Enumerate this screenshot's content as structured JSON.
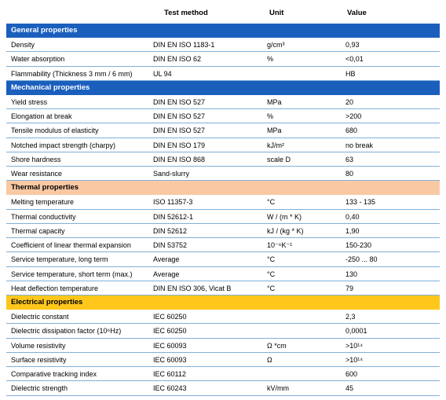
{
  "header": {
    "test_method": "Test method",
    "unit": "Unit",
    "value": "Value"
  },
  "sections": [
    {
      "id": "general",
      "title": "General properties",
      "color": "#1b5fbd",
      "rows": [
        {
          "name": "Density",
          "method": "DIN EN ISO 1183-1",
          "unit": "g/cm³",
          "value": "0,93"
        },
        {
          "name": "Water absorption",
          "method": "DIN EN ISO 62",
          "unit": "%",
          "value": "<0,01"
        },
        {
          "name": "Flammability (Thickness 3 mm / 6 mm)",
          "method": "UL 94",
          "unit": "",
          "value": "HB"
        }
      ]
    },
    {
      "id": "mech",
      "title": "Mechanical properties",
      "color": "#1b5fbd",
      "rows": [
        {
          "name": "Yield stress",
          "method": "DIN EN ISO 527",
          "unit": "MPa",
          "value": "20"
        },
        {
          "name": "Elongation at break",
          "method": "DIN EN ISO 527",
          "unit": "%",
          "value": ">200"
        },
        {
          "name": "Tensile modulus of elasticity",
          "method": "DIN EN ISO 527",
          "unit": "MPa",
          "value": "680"
        },
        {
          "name": "Notched impact strength (charpy)",
          "method": "DIN EN ISO 179",
          "unit": "kJ/m²",
          "value": "no break"
        },
        {
          "name": "Shore hardness",
          "method": "DIN EN ISO 868",
          "unit": "scale D",
          "value": "63"
        },
        {
          "name": "Wear resistance",
          "method": "Sand-slurry",
          "unit": "",
          "value": "80"
        }
      ]
    },
    {
      "id": "thermal",
      "title": "Thermal properties",
      "color": "#f9c9a4",
      "rows": [
        {
          "name": "Melting temperature",
          "method": "ISO 11357-3",
          "unit": "°C",
          "value": "133 - 135"
        },
        {
          "name": "Thermal conductivity",
          "method": "DIN 52612-1",
          "unit": "W / (m * K)",
          "value": "0,40"
        },
        {
          "name": "Thermal capacity",
          "method": "DIN 52612",
          "unit": "kJ / (kg * K)",
          "value": "1,90"
        },
        {
          "name": "Coefficient of linear thermal expansion",
          "method": "DIN 53752",
          "unit": "10⁻⁶K⁻¹",
          "value": "150-230"
        },
        {
          "name": "Service temperature, long term",
          "method": "Average",
          "unit": "°C",
          "value": "-250 ... 80"
        },
        {
          "name": "Service temperature, short term (max.)",
          "method": "Average",
          "unit": "°C",
          "value": "130"
        },
        {
          "name": "Heat deflection temperature",
          "method": "DIN EN ISO 306, Vicat B",
          "unit": "°C",
          "value": "79"
        }
      ]
    },
    {
      "id": "elec",
      "title": "Electrical properties",
      "color": "#ffc71c",
      "rows": [
        {
          "name": "Dielectric constant",
          "method": "IEC 60250",
          "unit": "",
          "value": "2,3"
        },
        {
          "name": "Dielectric dissipation factor (10⁶Hz)",
          "method": "IEC 60250",
          "unit": "",
          "value": "0,0001"
        },
        {
          "name": "Volume resistivity",
          "method": "IEC 60093",
          "unit": "Ω *cm",
          "value": ">10¹⁴"
        },
        {
          "name": "Surface resistivity",
          "method": "IEC 60093",
          "unit": "Ω",
          "value": ">10¹⁴"
        },
        {
          "name": "Comparative tracking index",
          "method": "IEC 60112",
          "unit": "",
          "value": "600"
        },
        {
          "name": "Dielectric strength",
          "method": "IEC 60243",
          "unit": "kV/mm",
          "value": "45"
        }
      ]
    }
  ]
}
